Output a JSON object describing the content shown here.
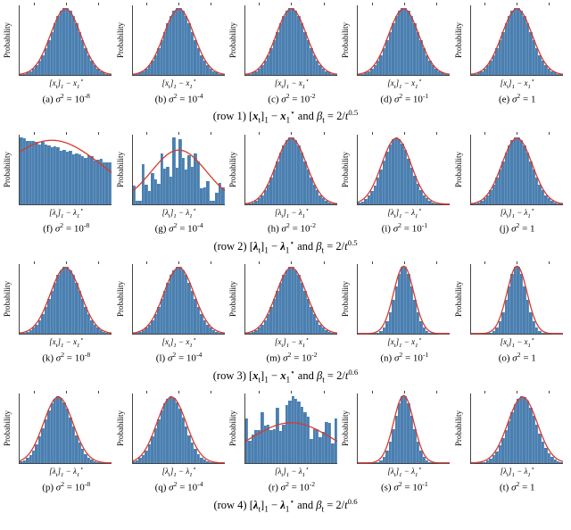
{
  "global": {
    "bar_color": "#4a7fb0",
    "curve_color": "#d63a2f",
    "background_color": "#ffffff",
    "axis_color": "#444444",
    "ylabel": "Probability",
    "ylabel_fontsize": 9,
    "xlabel_fontsize": 9,
    "caption_fontsize": 11,
    "row_caption_fontsize": 12.5,
    "font_family": "Times New Roman",
    "bins_per_panel": 30,
    "curve_stroke_width": 1.3
  },
  "rows": [
    {
      "row_index": 1,
      "caption_plain": "(row 1) [x_t]_1 − x_1^⋆ and β_t = 2/t^0.5",
      "var_symbol": "x",
      "beta_exponent": "0.5",
      "panels": [
        {
          "id": "a",
          "sigma2": "10^{-8}",
          "shape": "gauss",
          "curve_scale": 1.0
        },
        {
          "id": "b",
          "sigma2": "10^{-4}",
          "shape": "gauss",
          "curve_scale": 1.0
        },
        {
          "id": "c",
          "sigma2": "10^{-2}",
          "shape": "gauss",
          "curve_scale": 1.0
        },
        {
          "id": "d",
          "sigma2": "10^{-1}",
          "shape": "gauss",
          "curve_scale": 1.0
        },
        {
          "id": "e",
          "sigma2": "1",
          "shape": "gauss",
          "curve_scale": 1.0
        }
      ]
    },
    {
      "row_index": 2,
      "caption_plain": "(row 2) [λ_t]_1 − λ_1^⋆ and β_t = 2/t^0.5",
      "var_symbol": "λ",
      "beta_exponent": "0.5",
      "panels": [
        {
          "id": "f",
          "sigma2": "10^{-8}",
          "shape": "flat_decline",
          "curve_scale": 1.0
        },
        {
          "id": "g",
          "sigma2": "10^{-4}",
          "shape": "noisy",
          "curve_scale": 1.0
        },
        {
          "id": "h",
          "sigma2": "10^{-2}",
          "shape": "gauss",
          "curve_scale": 1.0
        },
        {
          "id": "i",
          "sigma2": "10^{-1}",
          "shape": "gauss_left",
          "curve_scale": 1.0
        },
        {
          "id": "j",
          "sigma2": "1",
          "shape": "gauss",
          "curve_scale": 1.0
        }
      ]
    },
    {
      "row_index": 3,
      "caption_plain": "(row 3) [x_t]_1 − x_1^⋆ and β_t = 2/t^0.6",
      "var_symbol": "x",
      "beta_exponent": "0.6",
      "panels": [
        {
          "id": "k",
          "sigma2": "10^{-8}",
          "shape": "gauss",
          "curve_scale": 1.0
        },
        {
          "id": "l",
          "sigma2": "10^{-4}",
          "shape": "gauss",
          "curve_scale": 1.0
        },
        {
          "id": "m",
          "sigma2": "10^{-2}",
          "shape": "gauss",
          "curve_scale": 1.0
        },
        {
          "id": "n",
          "sigma2": "10^{-1}",
          "shape": "sharp",
          "curve_scale": 1.0
        },
        {
          "id": "o",
          "sigma2": "1",
          "shape": "sharp",
          "curve_scale": 1.0
        }
      ]
    },
    {
      "row_index": 4,
      "caption_plain": "(row 4) [λ_t]_1 − λ_1^⋆ and β_t = 2/t^0.6",
      "var_symbol": "λ",
      "beta_exponent": "0.6",
      "panels": [
        {
          "id": "p",
          "sigma2": "10^{-8}",
          "shape": "gauss_left",
          "curve_scale": 1.0
        },
        {
          "id": "q",
          "sigma2": "10^{-4}",
          "shape": "gauss_left",
          "curve_scale": 1.0
        },
        {
          "id": "r",
          "sigma2": "10^{-2}",
          "shape": "noisy_wide",
          "curve_scale": 1.0
        },
        {
          "id": "s",
          "sigma2": "10^{-1}",
          "shape": "sharp",
          "curve_scale": 1.0
        },
        {
          "id": "t",
          "sigma2": "1",
          "shape": "gauss_right",
          "curve_scale": 1.0
        }
      ]
    }
  ],
  "shapes_note": "shape field drives synthetic bar heights. gauss = centered Gaussian histogram; gauss_left/gauss_right = slightly shifted; sharp = narrower peak; flat_decline = near-uniform slowly declining (panel f); noisy = rough histogram with Gaussian envelope (panel g); noisy_wide = wide flat-ish Gaussian with high variance (panel r)."
}
